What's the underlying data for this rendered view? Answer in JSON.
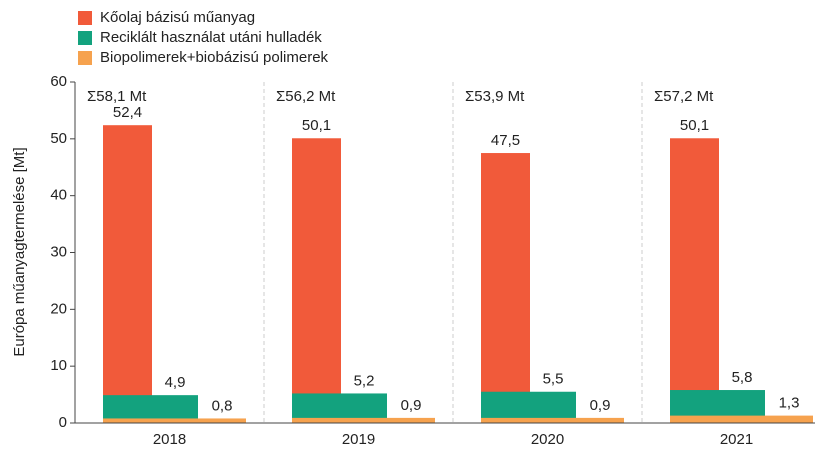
{
  "chart_data": {
    "type": "overlap-bar",
    "ylabel": "Európa műanyagtermelése [Mt]",
    "categories": [
      "2018",
      "2019",
      "2020",
      "2021"
    ],
    "series": [
      {
        "name": "Kőolaj bázisú műanyag",
        "color": "#f15a3a",
        "values": [
          52.4,
          50.1,
          47.5,
          50.1
        ],
        "value_labels": [
          "52,4",
          "50,1",
          "47,5",
          "50,1"
        ]
      },
      {
        "name": "Reciklált használat utáni hulladék",
        "color": "#13a27e",
        "values": [
          4.9,
          5.2,
          5.5,
          5.8
        ],
        "value_labels": [
          "4,9",
          "5,2",
          "5,5",
          "5,8"
        ]
      },
      {
        "name": "Biopolimerek+biobázisú polimerek",
        "color": "#f6a24e",
        "values": [
          0.8,
          0.9,
          0.9,
          1.3
        ],
        "value_labels": [
          "0,8",
          "0,9",
          "0,9",
          "1,3"
        ]
      }
    ],
    "annotations": [
      "Σ58,1 Mt",
      "Σ56,2 Mt",
      "Σ53,9 Mt",
      "Σ57,2 Mt"
    ],
    "annotation_color": "#2a9fd6",
    "ylim": [
      0,
      60
    ],
    "yticks": [
      0,
      10,
      20,
      30,
      40,
      50,
      60
    ],
    "grid": false
  }
}
